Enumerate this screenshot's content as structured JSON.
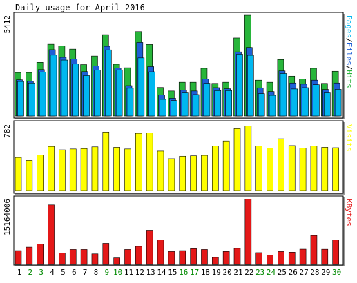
{
  "title": "Daily usage for April 2016",
  "colors": {
    "background": "#ffffff",
    "panel": "#ffffff",
    "border": "#000000",
    "hits": "#28b53b",
    "files": "#1e5fd6",
    "pages": "#00b7f0",
    "visits": "#ffff00",
    "kbytes": "#e41818",
    "weekend": "#008a00",
    "weekday": "#000000"
  },
  "chart_data": [
    {
      "type": "bar",
      "title": "",
      "ylabel_max": "5412",
      "legend": [
        "Pages",
        "Files",
        "Hits"
      ],
      "legend_position": "right",
      "ymax": 5412,
      "categories": [
        "1",
        "2",
        "3",
        "4",
        "5",
        "6",
        "7",
        "8",
        "9",
        "10",
        "11",
        "12",
        "13",
        "14",
        "15",
        "16",
        "17",
        "18",
        "19",
        "20",
        "21",
        "22",
        "23",
        "24",
        "25",
        "26",
        "27",
        "28",
        "29",
        "30"
      ],
      "series": [
        {
          "name": "Hits",
          "values": [
            2330,
            2330,
            2880,
            3850,
            3770,
            3590,
            2760,
            3220,
            4370,
            2780,
            2590,
            4530,
            3840,
            1530,
            1340,
            1810,
            1810,
            2560,
            1750,
            1810,
            4190,
            5410,
            1920,
            1810,
            3030,
            2140,
            1980,
            2560,
            1750,
            2400
          ]
        },
        {
          "name": "Files",
          "values": [
            1940,
            1860,
            2490,
            3560,
            3150,
            3060,
            2380,
            2680,
            3740,
            2580,
            1630,
            3950,
            2650,
            1130,
            950,
            1380,
            1340,
            1990,
            1520,
            1460,
            3440,
            3680,
            1510,
            1310,
            2420,
            1770,
            1710,
            1920,
            1420,
            1770
          ]
        },
        {
          "name": "Pages",
          "values": [
            1850,
            1770,
            2350,
            3270,
            3000,
            2790,
            2170,
            2470,
            3550,
            2470,
            1490,
            3120,
            2370,
            890,
            830,
            1240,
            1150,
            1760,
            1360,
            1360,
            3320,
            3260,
            1200,
            1110,
            2280,
            1450,
            1520,
            1680,
            1240,
            1430
          ]
        }
      ]
    },
    {
      "type": "bar",
      "title": "",
      "ylabel_max": "782",
      "legend": [
        "Visits"
      ],
      "legend_position": "right",
      "ymax": 782,
      "categories": [
        "1",
        "2",
        "3",
        "4",
        "5",
        "6",
        "7",
        "8",
        "9",
        "10",
        "11",
        "12",
        "13",
        "14",
        "15",
        "16",
        "17",
        "18",
        "19",
        "20",
        "21",
        "22",
        "23",
        "24",
        "25",
        "26",
        "27",
        "28",
        "29",
        "30"
      ],
      "series": [
        {
          "name": "Visits",
          "values": [
            390,
            355,
            420,
            520,
            480,
            490,
            495,
            515,
            690,
            510,
            490,
            675,
            680,
            465,
            375,
            405,
            410,
            415,
            525,
            585,
            730,
            760,
            525,
            500,
            610,
            530,
            500,
            525,
            510,
            505
          ]
        }
      ]
    },
    {
      "type": "bar",
      "title": "",
      "ylabel_max": "15164006",
      "legend": [
        "KBytes"
      ],
      "legend_position": "right",
      "ymax": 15164006,
      "categories": [
        "1",
        "2",
        "3",
        "4",
        "5",
        "6",
        "7",
        "8",
        "9",
        "10",
        "11",
        "12",
        "13",
        "14",
        "15",
        "16",
        "17",
        "18",
        "19",
        "20",
        "21",
        "22",
        "23",
        "24",
        "25",
        "26",
        "27",
        "28",
        "29",
        "30"
      ],
      "series": [
        {
          "name": "KBytes",
          "values": [
            3440,
            4300,
            5070,
            14880,
            2850,
            3720,
            3720,
            2630,
            5270,
            1620,
            3720,
            4500,
            8550,
            6100,
            3210,
            3440,
            3910,
            3720,
            1740,
            3220,
            3990,
            16340,
            2940,
            2290,
            3210,
            3050,
            3790,
            7220,
            3770,
            6100
          ]
        }
      ]
    }
  ],
  "weekend_days": [
    "2",
    "3",
    "9",
    "10",
    "16",
    "17",
    "23",
    "24",
    "30"
  ]
}
